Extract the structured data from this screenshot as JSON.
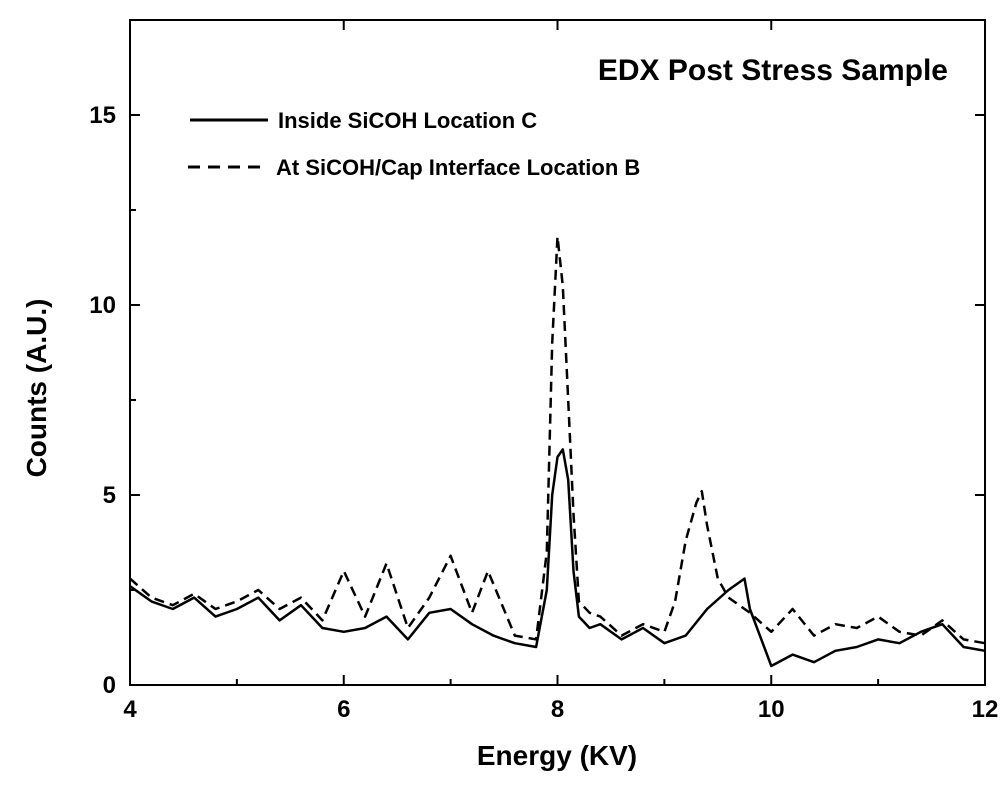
{
  "chart_data": {
    "type": "line",
    "title": "EDX Post Stress Sample",
    "xlabel": "Energy (KV)",
    "ylabel": "Counts (A.U.)",
    "xlim": [
      4,
      12
    ],
    "ylim": [
      0,
      17.5
    ],
    "xticks": [
      4,
      6,
      8,
      10,
      12
    ],
    "xtick_labels": [
      "4",
      "6",
      "8",
      "10",
      "12"
    ],
    "yticks": [
      0,
      5,
      10,
      15
    ],
    "ytick_labels": [
      "0",
      "5",
      "10",
      "15"
    ],
    "grid": false,
    "legend_position": "top-left",
    "series": [
      {
        "name": "Inside SiCOH Location C",
        "style": "solid",
        "color": "#000000",
        "x": [
          4.0,
          4.2,
          4.4,
          4.6,
          4.8,
          5.0,
          5.2,
          5.4,
          5.6,
          5.8,
          6.0,
          6.2,
          6.4,
          6.6,
          6.8,
          7.0,
          7.2,
          7.4,
          7.6,
          7.8,
          7.9,
          7.95,
          8.0,
          8.05,
          8.1,
          8.15,
          8.2,
          8.3,
          8.4,
          8.6,
          8.8,
          9.0,
          9.2,
          9.4,
          9.6,
          9.75,
          9.8,
          10.0,
          10.2,
          10.4,
          10.6,
          10.8,
          11.0,
          11.2,
          11.4,
          11.6,
          11.8,
          12.0
        ],
        "y": [
          2.6,
          2.2,
          2.0,
          2.3,
          1.8,
          2.0,
          2.3,
          1.7,
          2.1,
          1.5,
          1.4,
          1.5,
          1.8,
          1.2,
          1.9,
          2.0,
          1.6,
          1.3,
          1.1,
          1.0,
          2.5,
          5.0,
          6.0,
          6.2,
          5.4,
          3.0,
          1.8,
          1.5,
          1.6,
          1.2,
          1.5,
          1.1,
          1.3,
          2.0,
          2.5,
          2.8,
          2.0,
          0.5,
          0.8,
          0.6,
          0.9,
          1.0,
          1.2,
          1.1,
          1.4,
          1.6,
          1.0,
          0.9
        ]
      },
      {
        "name": "At SiCOH/Cap Interface Location B",
        "style": "dashed",
        "color": "#000000",
        "x": [
          4.0,
          4.2,
          4.4,
          4.6,
          4.8,
          5.0,
          5.2,
          5.4,
          5.6,
          5.8,
          6.0,
          6.2,
          6.4,
          6.6,
          6.8,
          7.0,
          7.2,
          7.35,
          7.6,
          7.8,
          7.9,
          7.95,
          8.0,
          8.05,
          8.1,
          8.15,
          8.2,
          8.3,
          8.4,
          8.6,
          8.8,
          9.0,
          9.1,
          9.2,
          9.3,
          9.35,
          9.4,
          9.5,
          9.6,
          9.8,
          10.0,
          10.2,
          10.4,
          10.6,
          10.8,
          11.0,
          11.2,
          11.4,
          11.6,
          11.8,
          12.0
        ],
        "y": [
          2.8,
          2.3,
          2.1,
          2.4,
          2.0,
          2.2,
          2.5,
          2.0,
          2.3,
          1.7,
          3.0,
          1.8,
          3.2,
          1.5,
          2.3,
          3.4,
          1.9,
          3.0,
          1.3,
          1.2,
          3.5,
          9.0,
          11.8,
          10.5,
          7.5,
          4.5,
          2.2,
          1.9,
          1.8,
          1.3,
          1.6,
          1.4,
          2.2,
          3.8,
          4.8,
          5.1,
          4.2,
          2.8,
          2.3,
          1.9,
          1.4,
          2.0,
          1.3,
          1.6,
          1.5,
          1.8,
          1.4,
          1.3,
          1.7,
          1.2,
          1.1
        ]
      }
    ]
  }
}
